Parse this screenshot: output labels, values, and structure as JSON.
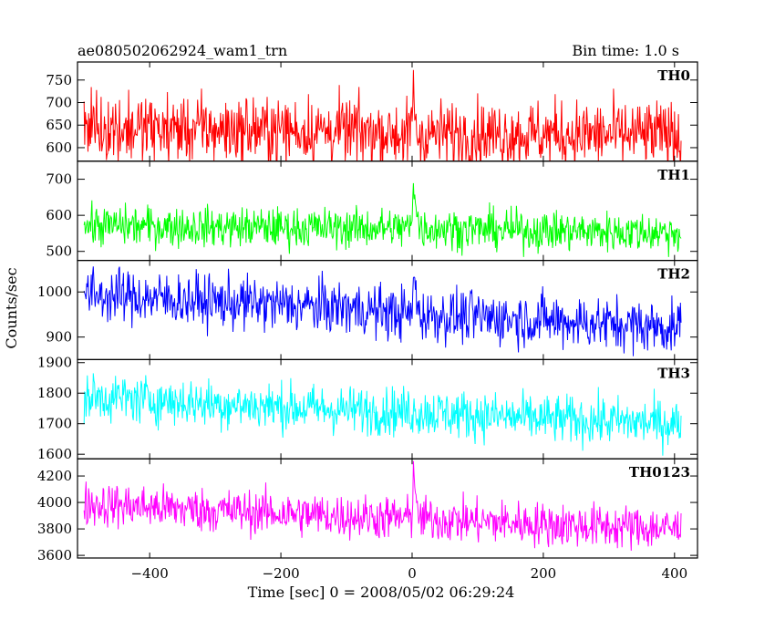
{
  "chart_data": {
    "type": "line",
    "title": "ae080502062924_wam1_trn",
    "bin_time_label": "Bin time: 1.0 s",
    "xlabel": "Time [sec] 0 = 2008/05/02 06:29:24",
    "ylabel": "Counts/sec",
    "xlim": [
      -510,
      435
    ],
    "x_ticks": [
      -400,
      -200,
      0,
      200,
      400
    ],
    "x_tick_labels": [
      "−400",
      "−200",
      "0",
      "200",
      "400"
    ],
    "x_range": [
      -500,
      410
    ],
    "panels": [
      {
        "name": "TH0",
        "color": "#ff0000",
        "ylim": [
          570,
          790
        ],
        "y_ticks": [
          600,
          650,
          700,
          750
        ],
        "baseline": [
          [
            -500,
            645
          ],
          [
            -300,
            640
          ],
          [
            -100,
            637
          ],
          [
            0,
            630
          ],
          [
            200,
            630
          ],
          [
            410,
            628
          ]
        ],
        "noise": 38,
        "flare": [
          [
            0,
            640
          ],
          [
            2,
            770
          ],
          [
            5,
            720
          ],
          [
            10,
            650
          ]
        ],
        "dip": [
          [
            4,
            60
          ],
          [
            10,
            20
          ]
        ]
      },
      {
        "name": "TH1",
        "color": "#00ff00",
        "ylim": [
          475,
          750
        ],
        "y_ticks": [
          500,
          600,
          700
        ],
        "baseline": [
          [
            -500,
            572
          ],
          [
            -300,
            567
          ],
          [
            -100,
            565
          ],
          [
            0,
            565
          ],
          [
            200,
            557
          ],
          [
            410,
            552
          ]
        ],
        "noise": 28,
        "flare": [
          [
            0,
            575
          ],
          [
            2,
            680
          ],
          [
            5,
            640
          ],
          [
            10,
            580
          ]
        ],
        "dip": []
      },
      {
        "name": "TH2",
        "color": "#0000ff",
        "ylim": [
          850,
          1070
        ],
        "y_ticks": [
          900,
          1000
        ],
        "baseline": [
          [
            -500,
            995
          ],
          [
            -300,
            978
          ],
          [
            -100,
            965
          ],
          [
            0,
            950
          ],
          [
            200,
            938
          ],
          [
            410,
            920
          ]
        ],
        "noise": 30,
        "flare": [
          [
            0,
            955
          ],
          [
            2,
            1040
          ],
          [
            6,
            995
          ],
          [
            10,
            955
          ]
        ],
        "dip": []
      },
      {
        "name": "TH3",
        "color": "#00ffff",
        "ylim": [
          1585,
          1910
        ],
        "y_ticks": [
          1600,
          1700,
          1800,
          1900
        ],
        "baseline": [
          [
            -500,
            1790
          ],
          [
            -300,
            1765
          ],
          [
            -100,
            1745
          ],
          [
            0,
            1740
          ],
          [
            200,
            1715
          ],
          [
            410,
            1700
          ]
        ],
        "noise": 40,
        "flare": [],
        "dip": []
      },
      {
        "name": "TH0123",
        "color": "#ff00ff",
        "ylim": [
          3580,
          4330
        ],
        "y_ticks": [
          3600,
          3800,
          4000,
          4200
        ],
        "baseline": [
          [
            -500,
            3990
          ],
          [
            -300,
            3940
          ],
          [
            -100,
            3895
          ],
          [
            0,
            3880
          ],
          [
            200,
            3835
          ],
          [
            410,
            3800
          ]
        ],
        "noise": 85,
        "flare": [
          [
            0,
            3880
          ],
          [
            2,
            4230
          ],
          [
            5,
            4080
          ],
          [
            10,
            3890
          ]
        ],
        "dip": []
      }
    ]
  }
}
